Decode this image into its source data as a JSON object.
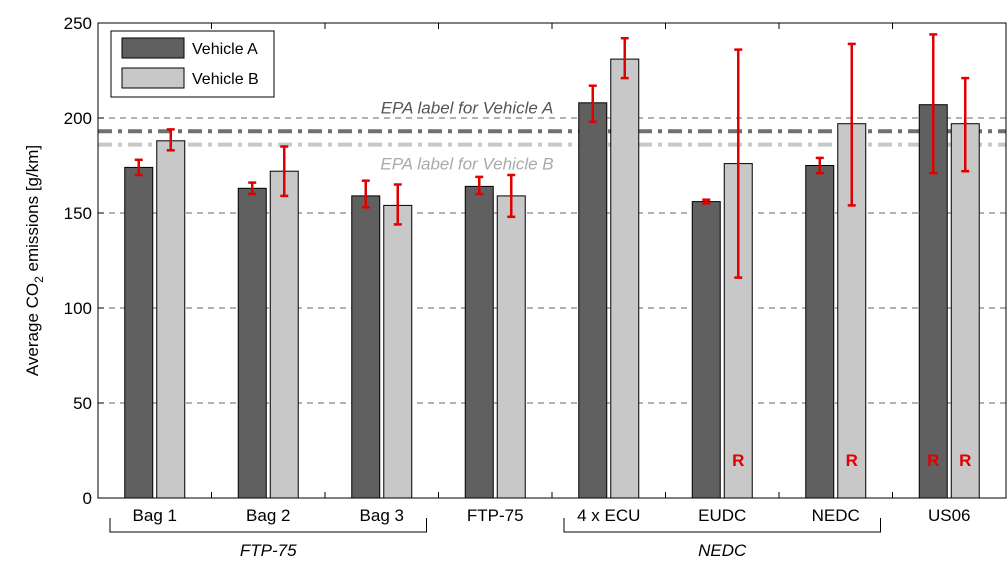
{
  "chart_data": {
    "type": "bar",
    "title": "",
    "ylabel_parts": {
      "pre": "Average CO",
      "sub": "2",
      "post": " emissions [g/km]"
    },
    "xlabel": "",
    "ylim": [
      0,
      250
    ],
    "yticks": [
      0,
      50,
      100,
      150,
      200,
      250
    ],
    "grid": "horizontal-dashed",
    "legend_position": "top-left",
    "categories": [
      "Bag 1",
      "Bag 2",
      "Bag 3",
      "FTP-75",
      "4 x ECU",
      "EUDC",
      "NEDC",
      "US06"
    ],
    "groups": [
      {
        "label": "FTP-75",
        "from": 0,
        "to": 2
      },
      {
        "label": "NEDC",
        "from": 4,
        "to": 6
      }
    ],
    "series": [
      {
        "name": "Vehicle A",
        "color": "#606060",
        "values": [
          174,
          163,
          159,
          164,
          208,
          156,
          175,
          207
        ],
        "err_low": [
          170,
          160,
          153,
          160,
          198,
          155,
          171,
          171
        ],
        "err_high": [
          178,
          166,
          167,
          169,
          217,
          157,
          179,
          244
        ],
        "r_marks": [
          false,
          false,
          false,
          false,
          false,
          false,
          false,
          true
        ]
      },
      {
        "name": "Vehicle B",
        "color": "#c8c8c8",
        "values": [
          188,
          172,
          154,
          159,
          231,
          176,
          197,
          197
        ],
        "err_low": [
          183,
          159,
          144,
          148,
          221,
          116,
          154,
          172
        ],
        "err_high": [
          194,
          185,
          165,
          170,
          242,
          236,
          239,
          221
        ],
        "r_marks": [
          false,
          false,
          false,
          false,
          false,
          true,
          true,
          true
        ]
      }
    ],
    "reference_lines": [
      {
        "label": "EPA label for Vehicle A",
        "value": 193,
        "color": "#707070"
      },
      {
        "label": "EPA label for Vehicle B",
        "value": 186,
        "color": "#c8c8c8"
      }
    ],
    "r_label": "R",
    "error_bar_color": "#e00000"
  }
}
